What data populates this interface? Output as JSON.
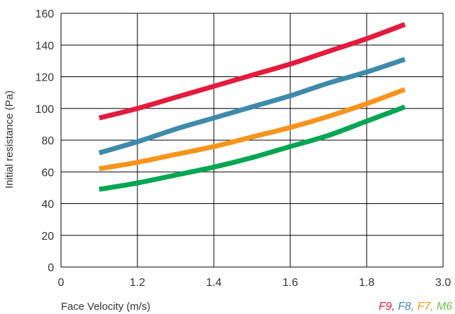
{
  "chart_data": {
    "type": "line",
    "xlabel": "Face Velocity (m/s)",
    "ylabel": "Initial resistance (Pa)",
    "x_ticks": [
      "0",
      "1.2",
      "1.4",
      "1.6",
      "1.8",
      "3.0"
    ],
    "y_ticks": [
      "0",
      "20",
      "40",
      "60",
      "80",
      "100",
      "120",
      "140",
      "160"
    ],
    "ylim": [
      0,
      160
    ],
    "grid": true,
    "legend_separator": ", ",
    "series": [
      {
        "name": "F9",
        "color": "#e31b3c",
        "x": [
          1.1,
          1.2,
          1.3,
          1.4,
          1.5,
          1.6,
          1.7,
          1.8,
          1.9
        ],
        "y": [
          94,
          100,
          107,
          114,
          121,
          128,
          136,
          144,
          153
        ]
      },
      {
        "name": "F8",
        "color": "#3f8aab",
        "x": [
          1.1,
          1.2,
          1.3,
          1.4,
          1.5,
          1.6,
          1.7,
          1.8,
          1.9
        ],
        "y": [
          72,
          79,
          87,
          94,
          101,
          108,
          116,
          123,
          131
        ]
      },
      {
        "name": "F7",
        "color": "#f7941d",
        "x": [
          1.1,
          1.2,
          1.3,
          1.4,
          1.5,
          1.6,
          1.7,
          1.8,
          1.9
        ],
        "y": [
          62,
          66,
          71,
          76,
          82,
          88,
          95,
          103,
          112
        ]
      },
      {
        "name": "M6",
        "color": "#6cc24a",
        "stroke": "#00a651",
        "x": [
          1.1,
          1.2,
          1.3,
          1.4,
          1.5,
          1.6,
          1.7,
          1.8,
          1.9
        ],
        "y": [
          49,
          53,
          58,
          63,
          69,
          76,
          83,
          92,
          101
        ]
      }
    ]
  }
}
